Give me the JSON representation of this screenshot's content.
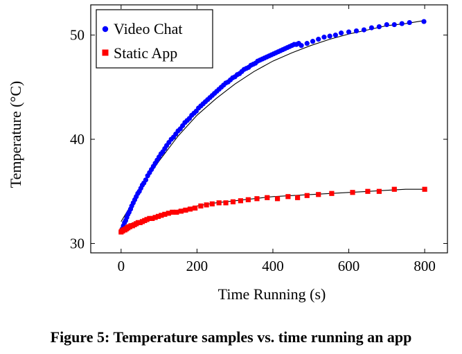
{
  "figure_caption": "Figure 5: Temperature samples vs. time running an app",
  "chart_data": {
    "type": "scatter",
    "title": "",
    "xlabel": "Time Running (s)",
    "ylabel": "Temperature (°C)",
    "xlim": [
      -80,
      860
    ],
    "ylim": [
      29.1,
      52.9
    ],
    "xticks": [
      0,
      200,
      400,
      600,
      800
    ],
    "xtick_labels": [
      "0",
      "200",
      "400",
      "600",
      "800"
    ],
    "yticks": [
      30,
      40,
      50
    ],
    "ytick_labels": [
      "30",
      "40",
      "50"
    ],
    "grid": false,
    "legend_position": "top-left",
    "colors": {
      "video_chat": "#0000ff",
      "static_app": "#ff0000",
      "fit": "#000000"
    },
    "series": [
      {
        "name": "Video Chat",
        "marker": "circle",
        "x": [
          0,
          3,
          6,
          9,
          12,
          15,
          18,
          21,
          25,
          28,
          32,
          36,
          40,
          44,
          48,
          52,
          56,
          60,
          65,
          70,
          75,
          80,
          85,
          90,
          95,
          100,
          105,
          110,
          115,
          120,
          126,
          132,
          138,
          144,
          150,
          156,
          162,
          168,
          174,
          180,
          186,
          192,
          198,
          204,
          210,
          216,
          222,
          228,
          234,
          240,
          246,
          252,
          258,
          264,
          270,
          276,
          282,
          288,
          294,
          300,
          306,
          312,
          318,
          324,
          330,
          336,
          342,
          348,
          354,
          360,
          366,
          372,
          378,
          384,
          390,
          396,
          402,
          408,
          414,
          420,
          426,
          432,
          438,
          444,
          450,
          456,
          462,
          468,
          475,
          490,
          505,
          520,
          535,
          550,
          565,
          580,
          600,
          620,
          640,
          660,
          680,
          700,
          720,
          740,
          760,
          798
        ],
        "y": [
          31.1,
          31.4,
          31.7,
          32.0,
          32.2,
          32.5,
          32.8,
          33.0,
          33.3,
          33.6,
          33.9,
          34.2,
          34.5,
          34.8,
          35.0,
          35.3,
          35.6,
          35.8,
          36.1,
          36.5,
          36.8,
          37.1,
          37.4,
          37.7,
          38.0,
          38.3,
          38.6,
          38.8,
          39.1,
          39.4,
          39.7,
          40.0,
          40.2,
          40.5,
          40.8,
          41.0,
          41.3,
          41.6,
          41.8,
          42.0,
          42.3,
          42.5,
          42.7,
          43.0,
          43.2,
          43.4,
          43.6,
          43.8,
          44.0,
          44.2,
          44.4,
          44.6,
          44.8,
          45.0,
          45.2,
          45.4,
          45.5,
          45.7,
          45.9,
          46.0,
          46.2,
          46.3,
          46.5,
          46.7,
          46.8,
          46.9,
          47.1,
          47.2,
          47.3,
          47.5,
          47.6,
          47.7,
          47.8,
          47.9,
          48.0,
          48.1,
          48.2,
          48.3,
          48.4,
          48.5,
          48.6,
          48.7,
          48.8,
          48.9,
          49.0,
          49.1,
          49.1,
          49.2,
          49.0,
          49.2,
          49.4,
          49.6,
          49.8,
          49.9,
          50.0,
          50.2,
          50.3,
          50.4,
          50.5,
          50.7,
          50.8,
          51.0,
          51.0,
          51.1,
          51.2,
          51.3
        ]
      },
      {
        "name": "Static App",
        "marker": "square",
        "x": [
          0,
          2,
          4,
          6,
          8,
          10,
          12,
          14,
          16,
          18,
          20,
          23,
          26,
          30,
          35,
          40,
          45,
          50,
          56,
          62,
          68,
          75,
          82,
          90,
          98,
          106,
          115,
          125,
          135,
          146,
          158,
          170,
          182,
          195,
          210,
          225,
          240,
          258,
          276,
          295,
          315,
          335,
          358,
          385,
          412,
          440,
          465,
          490,
          520,
          555,
          610,
          650,
          680,
          720,
          800
        ],
        "y": [
          31.1,
          31.2,
          31.2,
          31.3,
          31.3,
          31.3,
          31.4,
          31.4,
          31.5,
          31.5,
          31.6,
          31.6,
          31.7,
          31.7,
          31.8,
          31.9,
          32.0,
          32.0,
          32.1,
          32.2,
          32.3,
          32.4,
          32.4,
          32.5,
          32.6,
          32.7,
          32.8,
          32.9,
          33.0,
          33.0,
          33.1,
          33.2,
          33.3,
          33.4,
          33.6,
          33.7,
          33.8,
          33.9,
          33.9,
          34.0,
          34.1,
          34.2,
          34.3,
          34.4,
          34.3,
          34.5,
          34.4,
          34.6,
          34.7,
          34.8,
          34.9,
          35.0,
          35.0,
          35.2,
          35.2
        ]
      }
    ],
    "fits": [
      {
        "name": "video-chat-fit",
        "x": [
          0,
          25,
          50,
          75,
          100,
          150,
          200,
          250,
          300,
          350,
          400,
          450,
          500,
          550,
          600,
          650,
          700,
          750,
          800
        ],
        "y": [
          32.1,
          33.6,
          35.1,
          36.6,
          37.9,
          40.3,
          42.3,
          43.9,
          45.3,
          46.5,
          47.5,
          48.3,
          49.0,
          49.6,
          50.1,
          50.5,
          50.9,
          51.1,
          51.4
        ]
      },
      {
        "name": "static-app-fit",
        "x": [
          0,
          25,
          50,
          75,
          100,
          150,
          200,
          250,
          300,
          350,
          400,
          450,
          500,
          550,
          600,
          650,
          700,
          750,
          800
        ],
        "y": [
          31.5,
          31.9,
          32.2,
          32.5,
          32.8,
          33.2,
          33.6,
          33.9,
          34.1,
          34.3,
          34.5,
          34.6,
          34.7,
          34.8,
          34.9,
          35.0,
          35.1,
          35.2,
          35.2
        ]
      }
    ]
  }
}
